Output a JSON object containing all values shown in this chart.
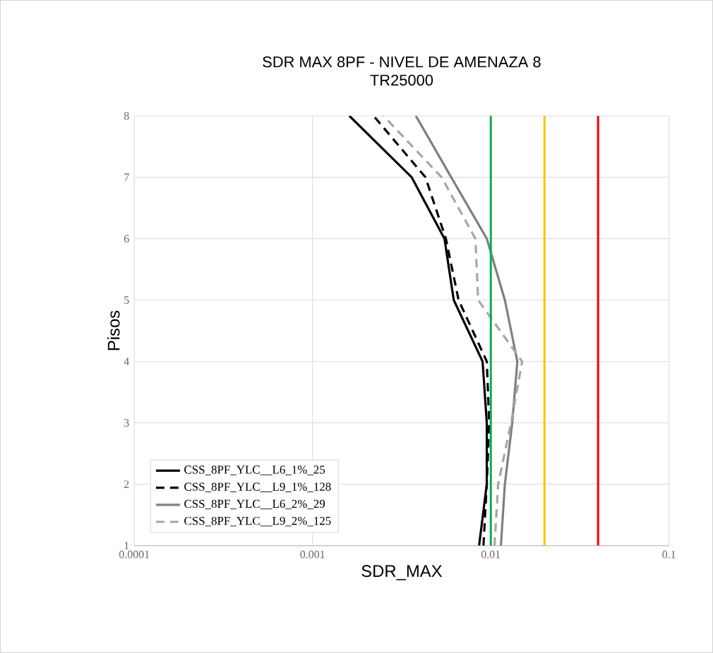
{
  "chart_data": {
    "type": "line",
    "title": "SDR MAX 8PF - NIVEL DE AMENAZA 8",
    "subtitle": "TR25000",
    "xlabel": "SDR_MAX",
    "ylabel": "Pisos",
    "log": "x",
    "grid": true,
    "legend": "bottom left",
    "marker": "none",
    "xlim": [
      0.0001,
      0.1
    ],
    "xticks": [
      {
        "value": 0.0001,
        "label": "0.0001"
      },
      {
        "value": 0.001,
        "label": "0.001"
      },
      {
        "value": 0.01,
        "label": "0.01"
      },
      {
        "value": 0.1,
        "label": "0.1"
      }
    ],
    "ylim": [
      1,
      8
    ],
    "yticks": [
      1,
      2,
      3,
      4,
      5,
      6,
      7,
      8
    ],
    "series": [
      {
        "name": "CSS_8PF_YLC__L6_1%_25",
        "color": "#000000",
        "line_style": "solid",
        "x": [
          0.0086,
          0.0095,
          0.0095,
          0.009,
          0.0062,
          0.0055,
          0.0036,
          0.00161
        ],
        "values": [
          1,
          2,
          3,
          4,
          5,
          6,
          7,
          8
        ]
      },
      {
        "name": "CSS_8PF_YLC__L9_1%_128",
        "color": "#000000",
        "line_style": "dashed",
        "x": [
          0.0091,
          0.0095,
          0.0098,
          0.0095,
          0.0066,
          0.0056,
          0.0043,
          0.0022
        ],
        "values": [
          1,
          2,
          3,
          4,
          5,
          6,
          7,
          8
        ]
      },
      {
        "name": "CSS_8PF_YLC__L6_2%_29",
        "color": "#7f7f7f",
        "line_style": "solid",
        "x": [
          0.0114,
          0.012,
          0.0132,
          0.0141,
          0.012,
          0.0095,
          0.006,
          0.0038
        ],
        "values": [
          1,
          2,
          3,
          4,
          5,
          6,
          7,
          8
        ]
      },
      {
        "name": "CSS_8PF_YLC__L9_2%_125",
        "color": "#a6a6a6",
        "line_style": "dashed",
        "x": [
          0.0105,
          0.011,
          0.013,
          0.015,
          0.0085,
          0.0082,
          0.0053,
          0.0025
        ],
        "values": [
          1,
          2,
          3,
          4,
          5,
          6,
          7,
          8
        ]
      }
    ],
    "ref_lines": [
      {
        "axis": "x",
        "value": 0.01,
        "color": "#00b050"
      },
      {
        "axis": "x",
        "value": 0.02,
        "color": "#ffc000"
      },
      {
        "axis": "x",
        "value": 0.04,
        "color": "#ff0000"
      }
    ]
  }
}
